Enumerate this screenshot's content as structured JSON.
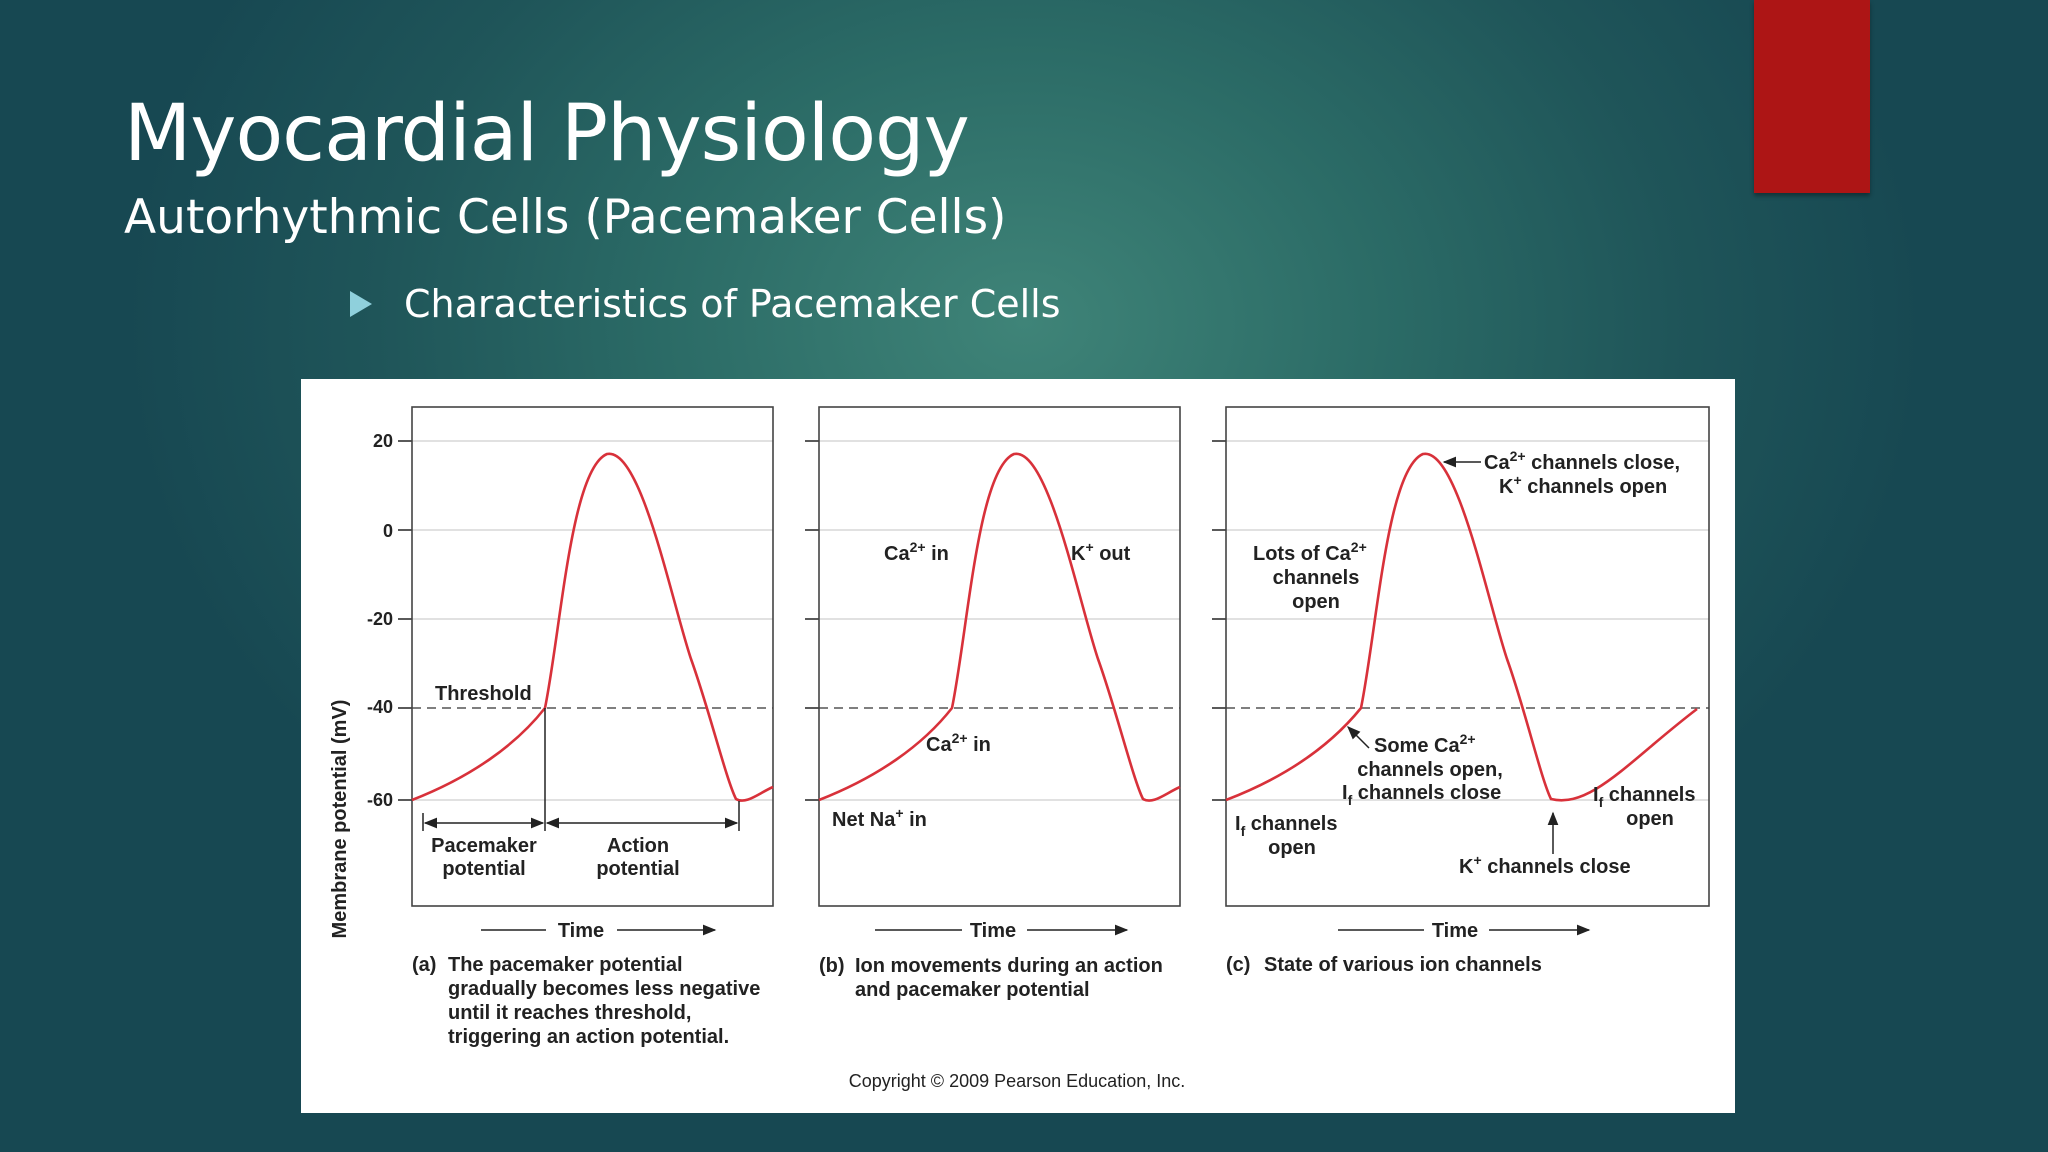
{
  "slide": {
    "title": "Myocardial Physiology",
    "subtitle": "Autorhythmic Cells (Pacemaker Cells)",
    "bullet": "Characteristics of Pacemaker Cells",
    "accent_color": "#ad1515",
    "bullet_icon": "triangle-right-icon"
  },
  "figure": {
    "y_axis_label": "Membrane potential (mV)",
    "y_ticks": [
      "20",
      "0",
      "-20",
      "-40",
      "-60"
    ],
    "x_axis_label": "Time",
    "panel_a": {
      "threshold": "Threshold",
      "pacemaker_1": "Pacemaker",
      "pacemaker_2": "potential",
      "action_1": "Action",
      "action_2": "potential",
      "caption_letter": "(a)",
      "caption_1": "The pacemaker potential",
      "caption_2": "gradually becomes less negative",
      "caption_3": "until it reaches threshold,",
      "caption_4": "triggering an action potential."
    },
    "panel_b": {
      "ca_in_top": "Ca",
      "ca_in_top_sup": "2+",
      "ca_in_top_suffix": " in",
      "k_out": "K",
      "k_out_sup": "+",
      "k_out_suffix": " out",
      "ca_in_mid": "Ca",
      "ca_in_mid_sup": "2+",
      "ca_in_mid_suffix": " in",
      "net_na": "Net Na",
      "net_na_sup": "+",
      "net_na_suffix": " in",
      "caption_letter": "(b)",
      "caption_1": "Ion movements during an action",
      "caption_2": "and pacemaker potential"
    },
    "panel_c": {
      "ca_close_1": "Ca",
      "ca_close_1_sup": "2+",
      "ca_close_1_suffix": " channels close,",
      "ca_close_2": "K",
      "ca_close_2_sup": "+",
      "ca_close_2_suffix": " channels open",
      "lots_1": "Lots of Ca",
      "lots_1_sup": "2+",
      "lots_2": "channels",
      "lots_3": "open",
      "some_1": "Some Ca",
      "some_1_sup": "2+",
      "some_2": "channels open,",
      "some_3_pre": "I",
      "some_3_sub": "f",
      "some_3_suffix": " channels close",
      "if_open_left_pre": "I",
      "if_open_left_sub": "f",
      "if_open_left_suffix": " channels",
      "if_open_left_2": "open",
      "if_open_right_pre": "I",
      "if_open_right_sub": "f",
      "if_open_right_suffix": " channels",
      "if_open_right_2": "open",
      "k_close": "K",
      "k_close_sup": "+",
      "k_close_suffix": " channels close",
      "caption_letter": "(c)",
      "caption_1": "State of various ion channels"
    },
    "copyright": "Copyright © 2009 Pearson Education, Inc.",
    "curve_color": "#d8313a"
  }
}
